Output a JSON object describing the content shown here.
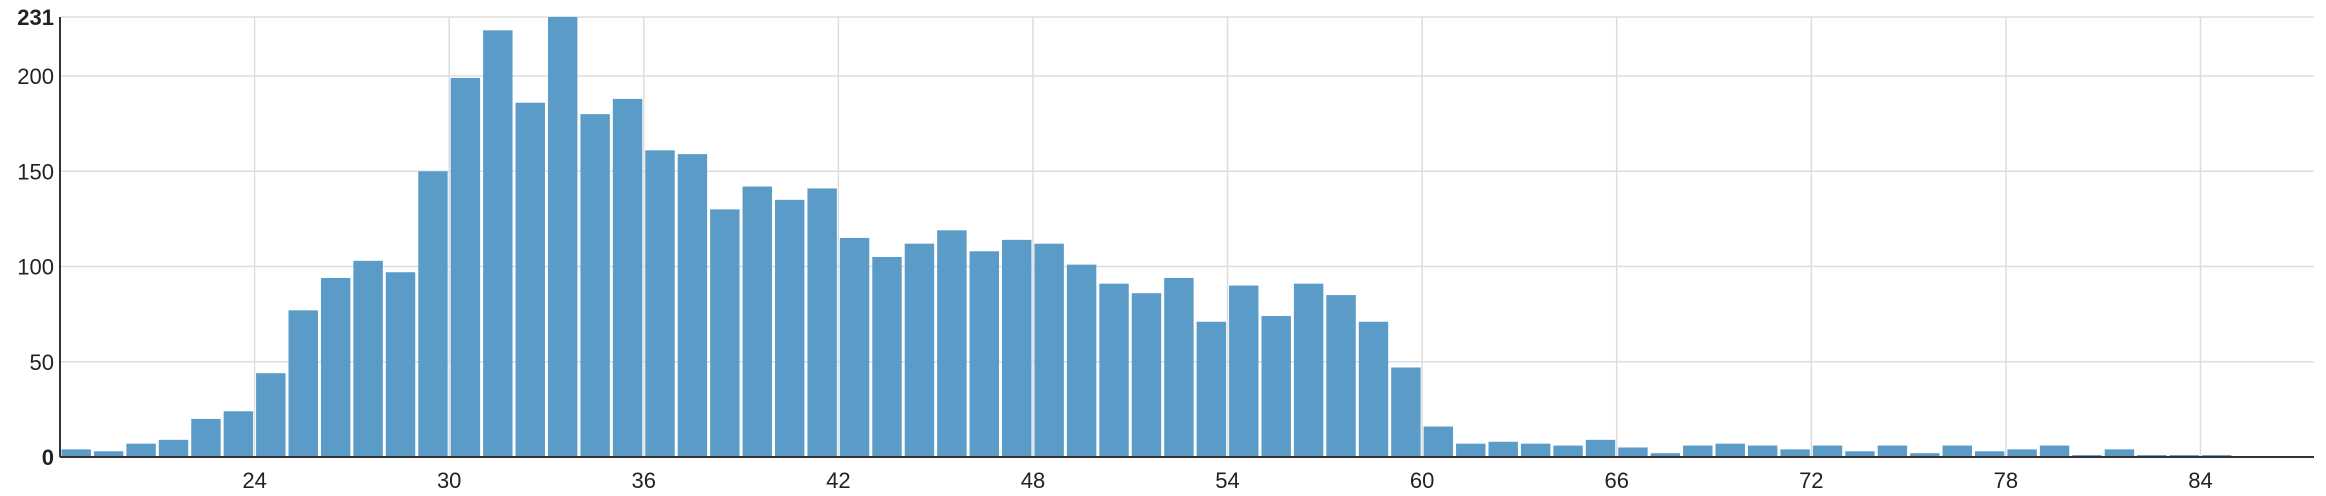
{
  "chart_data": {
    "type": "bar",
    "title": "",
    "xlabel": "",
    "ylabel": "",
    "bar_color": "#5b9bc8",
    "grid_color": "#dddddd",
    "xlim": [
      18,
      87.5
    ],
    "ylim": [
      0,
      231
    ],
    "xticks": [
      24,
      30,
      36,
      42,
      48,
      54,
      60,
      66,
      72,
      78,
      84
    ],
    "yticks": [
      0,
      50,
      100,
      150,
      200,
      231
    ],
    "y_max_label": "231",
    "bins_start": 18,
    "bin_width": 1,
    "values": [
      4,
      3,
      7,
      9,
      20,
      24,
      44,
      77,
      94,
      103,
      97,
      150,
      199,
      224,
      186,
      231,
      180,
      188,
      161,
      159,
      130,
      142,
      135,
      141,
      115,
      105,
      112,
      119,
      108,
      114,
      112,
      101,
      91,
      86,
      94,
      71,
      90,
      74,
      91,
      85,
      71,
      47,
      16,
      7,
      8,
      7,
      6,
      9,
      5,
      2,
      6,
      7,
      6,
      4,
      6,
      3,
      6,
      2,
      6,
      3,
      4,
      6,
      1,
      4,
      1,
      1,
      1
    ]
  }
}
